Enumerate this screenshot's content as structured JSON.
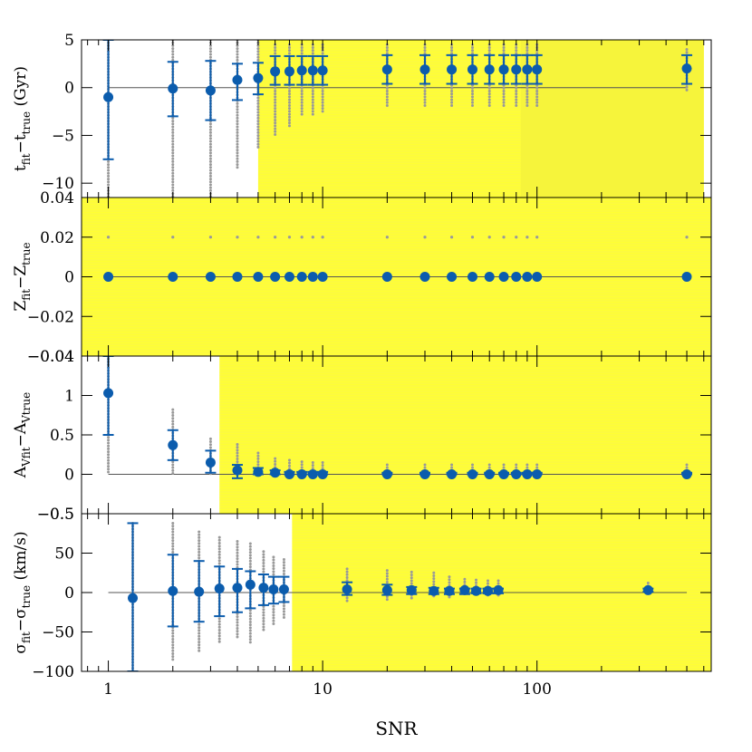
{
  "chart_data": {
    "type": "scatter",
    "x_axis": {
      "label": "SNR",
      "scale": "log",
      "range": [
        0.75,
        650
      ],
      "tick_labels": [
        "1",
        "10",
        "100"
      ]
    },
    "colors": {
      "highlight": "#ffff33",
      "marker": "#0b5cad",
      "scatter": "#999999",
      "zero_line": "#555555"
    },
    "panels": [
      {
        "key": "age",
        "ylabel_main": "t",
        "ylabel_sub1": "fit",
        "ylabel_mid": "−t",
        "ylabel_sub2": "true",
        "ylabel_tail": " (Gyr)",
        "ylim": [
          -11.5,
          5
        ],
        "tick_values": [
          5,
          0,
          -5,
          -10
        ],
        "tick_labels": [
          "5",
          "0",
          "−5",
          "−10"
        ],
        "shading": [
          {
            "from": 5,
            "to": 600,
            "y_from": -11.5,
            "y_to": 5,
            "density": "light"
          },
          {
            "from": 84,
            "to": 600,
            "y_from": -11.5,
            "y_to": 5,
            "density": "dense"
          }
        ],
        "points": [
          {
            "snr": 1,
            "median": -1,
            "err_low": -7.5,
            "err_high": 5,
            "scatter_low": -11.5,
            "scatter_high": 5
          },
          {
            "snr": 2,
            "median": -0.1,
            "err_low": -3,
            "err_high": 2.7,
            "scatter_low": -11.5,
            "scatter_high": 5
          },
          {
            "snr": 3,
            "median": -0.3,
            "err_low": -3.4,
            "err_high": 2.8,
            "scatter_low": -11.5,
            "scatter_high": 5
          },
          {
            "snr": 4,
            "median": 0.8,
            "err_low": -1.3,
            "err_high": 2.5,
            "scatter_low": -8.5,
            "scatter_high": 5
          },
          {
            "snr": 5,
            "median": 1,
            "err_low": -0.7,
            "err_high": 2.6,
            "scatter_low": -6.5,
            "scatter_high": 5
          },
          {
            "snr": 6,
            "median": 1.7,
            "err_low": 0.3,
            "err_high": 3.3,
            "scatter_low": -5,
            "scatter_high": 4.5
          },
          {
            "snr": 7,
            "median": 1.7,
            "err_low": 0.3,
            "err_high": 3.3,
            "scatter_low": -4,
            "scatter_high": 4.5
          },
          {
            "snr": 8,
            "median": 1.8,
            "err_low": 0.3,
            "err_high": 3.3,
            "scatter_low": -3,
            "scatter_high": 4.5
          },
          {
            "snr": 9,
            "median": 1.8,
            "err_low": 0.3,
            "err_high": 3.3,
            "scatter_low": -3,
            "scatter_high": 4.5
          },
          {
            "snr": 10,
            "median": 1.8,
            "err_low": 0.3,
            "err_high": 3.3,
            "scatter_low": -2.5,
            "scatter_high": 4.5
          },
          {
            "snr": 20,
            "median": 1.9,
            "err_low": 0.4,
            "err_high": 3.4,
            "scatter_low": -2,
            "scatter_high": 4.5
          },
          {
            "snr": 30,
            "median": 1.9,
            "err_low": 0.4,
            "err_high": 3.4,
            "scatter_low": -2,
            "scatter_high": 4.5
          },
          {
            "snr": 40,
            "median": 1.9,
            "err_low": 0.4,
            "err_high": 3.4,
            "scatter_low": -2,
            "scatter_high": 4.5
          },
          {
            "snr": 50,
            "median": 1.9,
            "err_low": 0.4,
            "err_high": 3.4,
            "scatter_low": -2,
            "scatter_high": 4.5
          },
          {
            "snr": 60,
            "median": 1.9,
            "err_low": 0.4,
            "err_high": 3.4,
            "scatter_low": -2,
            "scatter_high": 4.5
          },
          {
            "snr": 70,
            "median": 1.9,
            "err_low": 0.4,
            "err_high": 3.4,
            "scatter_low": -2,
            "scatter_high": 4.5
          },
          {
            "snr": 80,
            "median": 1.9,
            "err_low": 0.4,
            "err_high": 3.4,
            "scatter_low": -2,
            "scatter_high": 4.5
          },
          {
            "snr": 90,
            "median": 1.9,
            "err_low": 0.4,
            "err_high": 3.4,
            "scatter_low": -2,
            "scatter_high": 4.5
          },
          {
            "snr": 100,
            "median": 1.9,
            "err_low": 0.4,
            "err_high": 3.4,
            "scatter_low": -2,
            "scatter_high": 4.5
          },
          {
            "snr": 500,
            "median": 2,
            "err_low": 0.4,
            "err_high": 3.4,
            "scatter_low": -0.5,
            "scatter_high": 4
          }
        ]
      },
      {
        "key": "metallicity",
        "ylabel_main": "Z",
        "ylabel_sub1": "fit",
        "ylabel_mid": "−Z",
        "ylabel_sub2": "true",
        "ylabel_tail": "",
        "ylim": [
          -0.04,
          0.04
        ],
        "tick_values": [
          0.04,
          0.02,
          0,
          -0.02,
          -0.04
        ],
        "tick_labels": [
          "0.04",
          "0.02",
          "0",
          "−0.02",
          "−0.04"
        ],
        "shading": [
          {
            "from": 0.75,
            "to": 650,
            "y_from": -0.04,
            "y_to": 0.04,
            "density": "light"
          }
        ],
        "points": [
          {
            "snr": 1,
            "median": 0,
            "err_low": 0,
            "err_high": 0,
            "scatter_low": 0,
            "scatter_high": 0.02
          },
          {
            "snr": 2,
            "median": 0,
            "err_low": 0,
            "err_high": 0,
            "scatter_low": 0,
            "scatter_high": 0.02
          },
          {
            "snr": 3,
            "median": 0,
            "err_low": 0,
            "err_high": 0,
            "scatter_low": 0,
            "scatter_high": 0.02
          },
          {
            "snr": 4,
            "median": 0,
            "err_low": 0,
            "err_high": 0,
            "scatter_low": 0,
            "scatter_high": 0.02
          },
          {
            "snr": 5,
            "median": 0,
            "err_low": 0,
            "err_high": 0,
            "scatter_low": 0,
            "scatter_high": 0.02
          },
          {
            "snr": 6,
            "median": 0,
            "err_low": 0,
            "err_high": 0,
            "scatter_low": 0,
            "scatter_high": 0.02
          },
          {
            "snr": 7,
            "median": 0,
            "err_low": 0,
            "err_high": 0,
            "scatter_low": 0,
            "scatter_high": 0.02
          },
          {
            "snr": 8,
            "median": 0,
            "err_low": 0,
            "err_high": 0,
            "scatter_low": 0,
            "scatter_high": 0.02
          },
          {
            "snr": 9,
            "median": 0,
            "err_low": 0,
            "err_high": 0,
            "scatter_low": 0,
            "scatter_high": 0.02
          },
          {
            "snr": 10,
            "median": 0,
            "err_low": 0,
            "err_high": 0,
            "scatter_low": 0,
            "scatter_high": 0.02
          },
          {
            "snr": 20,
            "median": 0,
            "err_low": 0,
            "err_high": 0,
            "scatter_low": 0,
            "scatter_high": 0.02
          },
          {
            "snr": 30,
            "median": 0,
            "err_low": 0,
            "err_high": 0,
            "scatter_low": 0,
            "scatter_high": 0.02
          },
          {
            "snr": 40,
            "median": 0,
            "err_low": 0,
            "err_high": 0,
            "scatter_low": 0,
            "scatter_high": 0.02
          },
          {
            "snr": 50,
            "median": 0,
            "err_low": 0,
            "err_high": 0,
            "scatter_low": 0,
            "scatter_high": 0.02
          },
          {
            "snr": 60,
            "median": 0,
            "err_low": 0,
            "err_high": 0,
            "scatter_low": 0,
            "scatter_high": 0.02
          },
          {
            "snr": 70,
            "median": 0,
            "err_low": 0,
            "err_high": 0,
            "scatter_low": 0,
            "scatter_high": 0.02
          },
          {
            "snr": 80,
            "median": 0,
            "err_low": 0,
            "err_high": 0,
            "scatter_low": 0,
            "scatter_high": 0.02
          },
          {
            "snr": 90,
            "median": 0,
            "err_low": 0,
            "err_high": 0,
            "scatter_low": 0,
            "scatter_high": 0.02
          },
          {
            "snr": 100,
            "median": 0,
            "err_low": 0,
            "err_high": 0,
            "scatter_low": 0,
            "scatter_high": 0.02
          },
          {
            "snr": 500,
            "median": 0,
            "err_low": 0,
            "err_high": 0,
            "scatter_low": 0,
            "scatter_high": 0.02
          }
        ]
      },
      {
        "key": "extinction",
        "ylabel_main": "A",
        "ylabel_sub1": "Vfit",
        "ylabel_mid": "−A",
        "ylabel_sub2": "Vtrue",
        "ylabel_tail": "",
        "ylim": [
          -0.5,
          1.5
        ],
        "tick_values": [
          1,
          0.5,
          0,
          -0.5
        ],
        "tick_labels": [
          "1",
          "0.5",
          "0",
          "−0.5"
        ],
        "top_tick_label": "−0.04",
        "shading": [
          {
            "from": 3.3,
            "to": 650,
            "y_from": -0.5,
            "y_to": 1.5,
            "density": "light"
          }
        ],
        "points": [
          {
            "snr": 1,
            "median": 1.03,
            "err_low": 0.5,
            "err_high": 1.5,
            "scatter_low": 0,
            "scatter_high": 1.5
          },
          {
            "snr": 2,
            "median": 0.37,
            "err_low": 0.18,
            "err_high": 0.56,
            "scatter_low": 0,
            "scatter_high": 0.82
          },
          {
            "snr": 3,
            "median": 0.15,
            "err_low": 0.02,
            "err_high": 0.3,
            "scatter_low": 0,
            "scatter_high": 0.45
          },
          {
            "snr": 4,
            "median": 0.05,
            "err_low": -0.05,
            "err_high": 0.12,
            "scatter_low": 0,
            "scatter_high": 0.38
          },
          {
            "snr": 5,
            "median": 0.03,
            "err_low": 0,
            "err_high": 0.08,
            "scatter_low": 0,
            "scatter_high": 0.27
          },
          {
            "snr": 6,
            "median": 0.02,
            "err_low": 0,
            "err_high": 0.05,
            "scatter_low": 0,
            "scatter_high": 0.2
          },
          {
            "snr": 7,
            "median": 0,
            "err_low": 0,
            "err_high": 0.03,
            "scatter_low": 0,
            "scatter_high": 0.18
          },
          {
            "snr": 8,
            "median": 0,
            "err_low": 0,
            "err_high": 0.03,
            "scatter_low": 0,
            "scatter_high": 0.16
          },
          {
            "snr": 9,
            "median": 0,
            "err_low": 0,
            "err_high": 0.03,
            "scatter_low": 0,
            "scatter_high": 0.15
          },
          {
            "snr": 10,
            "median": 0,
            "err_low": 0,
            "err_high": 0.03,
            "scatter_low": 0,
            "scatter_high": 0.15
          },
          {
            "snr": 20,
            "median": 0,
            "err_low": 0,
            "err_high": 0.02,
            "scatter_low": 0,
            "scatter_high": 0.12
          },
          {
            "snr": 30,
            "median": 0,
            "err_low": 0,
            "err_high": 0.02,
            "scatter_low": 0,
            "scatter_high": 0.12
          },
          {
            "snr": 40,
            "median": 0,
            "err_low": 0,
            "err_high": 0.02,
            "scatter_low": 0,
            "scatter_high": 0.12
          },
          {
            "snr": 50,
            "median": 0,
            "err_low": 0,
            "err_high": 0.02,
            "scatter_low": 0,
            "scatter_high": 0.12
          },
          {
            "snr": 60,
            "median": 0,
            "err_low": 0,
            "err_high": 0.02,
            "scatter_low": 0,
            "scatter_high": 0.12
          },
          {
            "snr": 70,
            "median": 0,
            "err_low": 0,
            "err_high": 0.02,
            "scatter_low": 0,
            "scatter_high": 0.12
          },
          {
            "snr": 80,
            "median": 0,
            "err_low": 0,
            "err_high": 0.02,
            "scatter_low": 0,
            "scatter_high": 0.12
          },
          {
            "snr": 90,
            "median": 0,
            "err_low": 0,
            "err_high": 0.02,
            "scatter_low": 0,
            "scatter_high": 0.12
          },
          {
            "snr": 100,
            "median": 0,
            "err_low": 0,
            "err_high": 0.02,
            "scatter_low": 0,
            "scatter_high": 0.12
          },
          {
            "snr": 500,
            "median": 0,
            "err_low": 0,
            "err_high": 0.02,
            "scatter_low": 0,
            "scatter_high": 0.12
          }
        ]
      },
      {
        "key": "dispersion",
        "ylabel_main": "σ",
        "ylabel_sub1": "fit",
        "ylabel_mid": "−σ",
        "ylabel_sub2": "true",
        "ylabel_tail": " (km/s)",
        "ylim": [
          -100,
          100
        ],
        "tick_values": [
          50,
          0,
          -50,
          -100
        ],
        "tick_labels": [
          "50",
          "0",
          "−50",
          "−100"
        ],
        "top_tick_label": "−0.5",
        "shading": [
          {
            "from": 7.2,
            "to": 650,
            "y_from": -100,
            "y_to": 100,
            "density": "light"
          }
        ],
        "points": [
          {
            "snr": 1.3,
            "median": -7,
            "err_low": -100,
            "err_high": 88,
            "scatter_low": -100,
            "scatter_high": 88
          },
          {
            "snr": 2,
            "median": 2,
            "err_low": -43,
            "err_high": 48,
            "scatter_low": -87,
            "scatter_high": 88
          },
          {
            "snr": 2.65,
            "median": 1,
            "err_low": -37,
            "err_high": 40,
            "scatter_low": -75,
            "scatter_high": 77
          },
          {
            "snr": 3.3,
            "median": 5,
            "err_low": -30,
            "err_high": 33,
            "scatter_low": -65,
            "scatter_high": 70
          },
          {
            "snr": 4,
            "median": 6,
            "err_low": -25,
            "err_high": 30,
            "scatter_low": -58,
            "scatter_high": 65
          },
          {
            "snr": 4.6,
            "median": 10,
            "err_low": -20,
            "err_high": 27,
            "scatter_low": -65,
            "scatter_high": 62
          },
          {
            "snr": 5.3,
            "median": 6,
            "err_low": -16,
            "err_high": 23,
            "scatter_low": -50,
            "scatter_high": 52
          },
          {
            "snr": 5.9,
            "median": 4,
            "err_low": -14,
            "err_high": 20,
            "scatter_low": -40,
            "scatter_high": 45
          },
          {
            "snr": 6.6,
            "median": 4,
            "err_low": -12,
            "err_high": 20,
            "scatter_low": -35,
            "scatter_high": 42
          },
          {
            "snr": 13,
            "median": 4,
            "err_low": -3,
            "err_high": 13,
            "scatter_low": -12,
            "scatter_high": 30
          },
          {
            "snr": 20,
            "median": 3,
            "err_low": -3,
            "err_high": 10,
            "scatter_low": -10,
            "scatter_high": 28
          },
          {
            "snr": 26,
            "median": 3,
            "err_low": -2,
            "err_high": 7,
            "scatter_low": -8,
            "scatter_high": 26
          },
          {
            "snr": 33,
            "median": 2,
            "err_low": -2,
            "err_high": 6,
            "scatter_low": -8,
            "scatter_high": 25
          },
          {
            "snr": 39,
            "median": 2,
            "err_low": -2,
            "err_high": 5,
            "scatter_low": -6,
            "scatter_high": 20
          },
          {
            "snr": 46,
            "median": 3,
            "err_low": -2,
            "err_high": 5,
            "scatter_low": -5,
            "scatter_high": 17
          },
          {
            "snr": 52,
            "median": 2,
            "err_low": -1,
            "err_high": 5,
            "scatter_low": -5,
            "scatter_high": 16
          },
          {
            "snr": 59,
            "median": 2,
            "err_low": -1,
            "err_high": 5,
            "scatter_low": -5,
            "scatter_high": 15
          },
          {
            "snr": 66,
            "median": 3,
            "err_low": -1,
            "err_high": 5,
            "scatter_low": -5,
            "scatter_high": 15
          },
          {
            "snr": 330,
            "median": 3,
            "err_low": 1,
            "err_high": 5,
            "scatter_low": 0,
            "scatter_high": 12
          }
        ]
      }
    ]
  }
}
